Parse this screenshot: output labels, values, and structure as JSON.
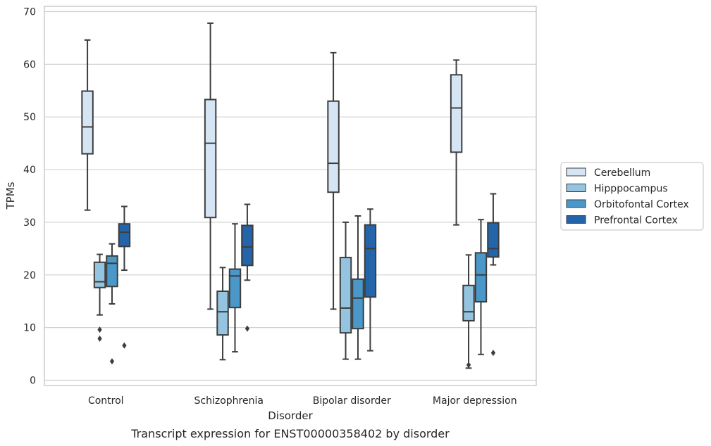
{
  "chart_data": {
    "type": "box",
    "title": "",
    "caption": "Transcript expression for ENST00000358402 by disorder",
    "xlabel": "Disorder",
    "ylabel": "TPMs",
    "ylim": [
      -1,
      71
    ],
    "yticks": [
      "0",
      "10",
      "20",
      "30",
      "40",
      "50",
      "60",
      "70"
    ],
    "grid": "horizontal",
    "legend_position": "right",
    "categories": [
      "Control",
      "Schizophrenia",
      "Bipolar disorder",
      "Major depression"
    ],
    "series": [
      {
        "name": "Cerebellum",
        "color": "#d6e5f4",
        "boxes": [
          {
            "low": 32.3,
            "q1": 43.0,
            "median": 48.1,
            "q3": 54.9,
            "high": 64.6,
            "outliers": []
          },
          {
            "low": 13.5,
            "q1": 30.9,
            "median": 45.0,
            "q3": 53.3,
            "high": 67.8,
            "outliers": []
          },
          {
            "low": 13.5,
            "q1": 35.7,
            "median": 41.2,
            "q3": 53.0,
            "high": 62.2,
            "outliers": []
          },
          {
            "low": 29.5,
            "q1": 43.3,
            "median": 51.7,
            "q3": 58.0,
            "high": 60.8,
            "outliers": []
          }
        ]
      },
      {
        "name": "Hipppocampus",
        "color": "#94c4df",
        "boxes": [
          {
            "low": 12.4,
            "q1": 17.6,
            "median": 18.7,
            "q3": 22.4,
            "high": 23.9,
            "outliers": [
              9.6,
              7.9
            ]
          },
          {
            "low": 3.9,
            "q1": 8.6,
            "median": 13.0,
            "q3": 16.9,
            "high": 21.4,
            "outliers": []
          },
          {
            "low": 4.0,
            "q1": 9.0,
            "median": 13.7,
            "q3": 23.3,
            "high": 30.0,
            "outliers": []
          },
          {
            "low": 2.3,
            "q1": 11.3,
            "median": 13.0,
            "q3": 18.0,
            "high": 23.8,
            "outliers": [
              2.9
            ]
          }
        ]
      },
      {
        "name": "Orbitofontal Cortex",
        "color": "#4a98c9",
        "boxes": [
          {
            "low": 14.5,
            "q1": 17.8,
            "median": 22.2,
            "q3": 23.6,
            "high": 25.9,
            "outliers": [
              3.6
            ]
          },
          {
            "low": 5.4,
            "q1": 13.8,
            "median": 19.8,
            "q3": 21.1,
            "high": 29.7,
            "outliers": []
          },
          {
            "low": 4.0,
            "q1": 9.8,
            "median": 15.6,
            "q3": 19.2,
            "high": 31.2,
            "outliers": []
          },
          {
            "low": 4.9,
            "q1": 14.9,
            "median": 20.0,
            "q3": 24.2,
            "high": 30.5,
            "outliers": []
          }
        ]
      },
      {
        "name": "Prefrontal Cortex",
        "color": "#2464a9",
        "boxes": [
          {
            "low": 20.9,
            "q1": 25.4,
            "median": 28.1,
            "q3": 29.7,
            "high": 33.0,
            "outliers": [
              6.6
            ]
          },
          {
            "low": 19.0,
            "q1": 21.8,
            "median": 25.3,
            "q3": 29.4,
            "high": 33.4,
            "outliers": [
              9.8
            ]
          },
          {
            "low": 5.6,
            "q1": 15.8,
            "median": 25.0,
            "q3": 29.5,
            "high": 32.5,
            "outliers": []
          },
          {
            "low": 21.9,
            "q1": 23.4,
            "median": 25.0,
            "q3": 29.9,
            "high": 35.4,
            "outliers": [
              5.2
            ]
          }
        ]
      }
    ]
  }
}
